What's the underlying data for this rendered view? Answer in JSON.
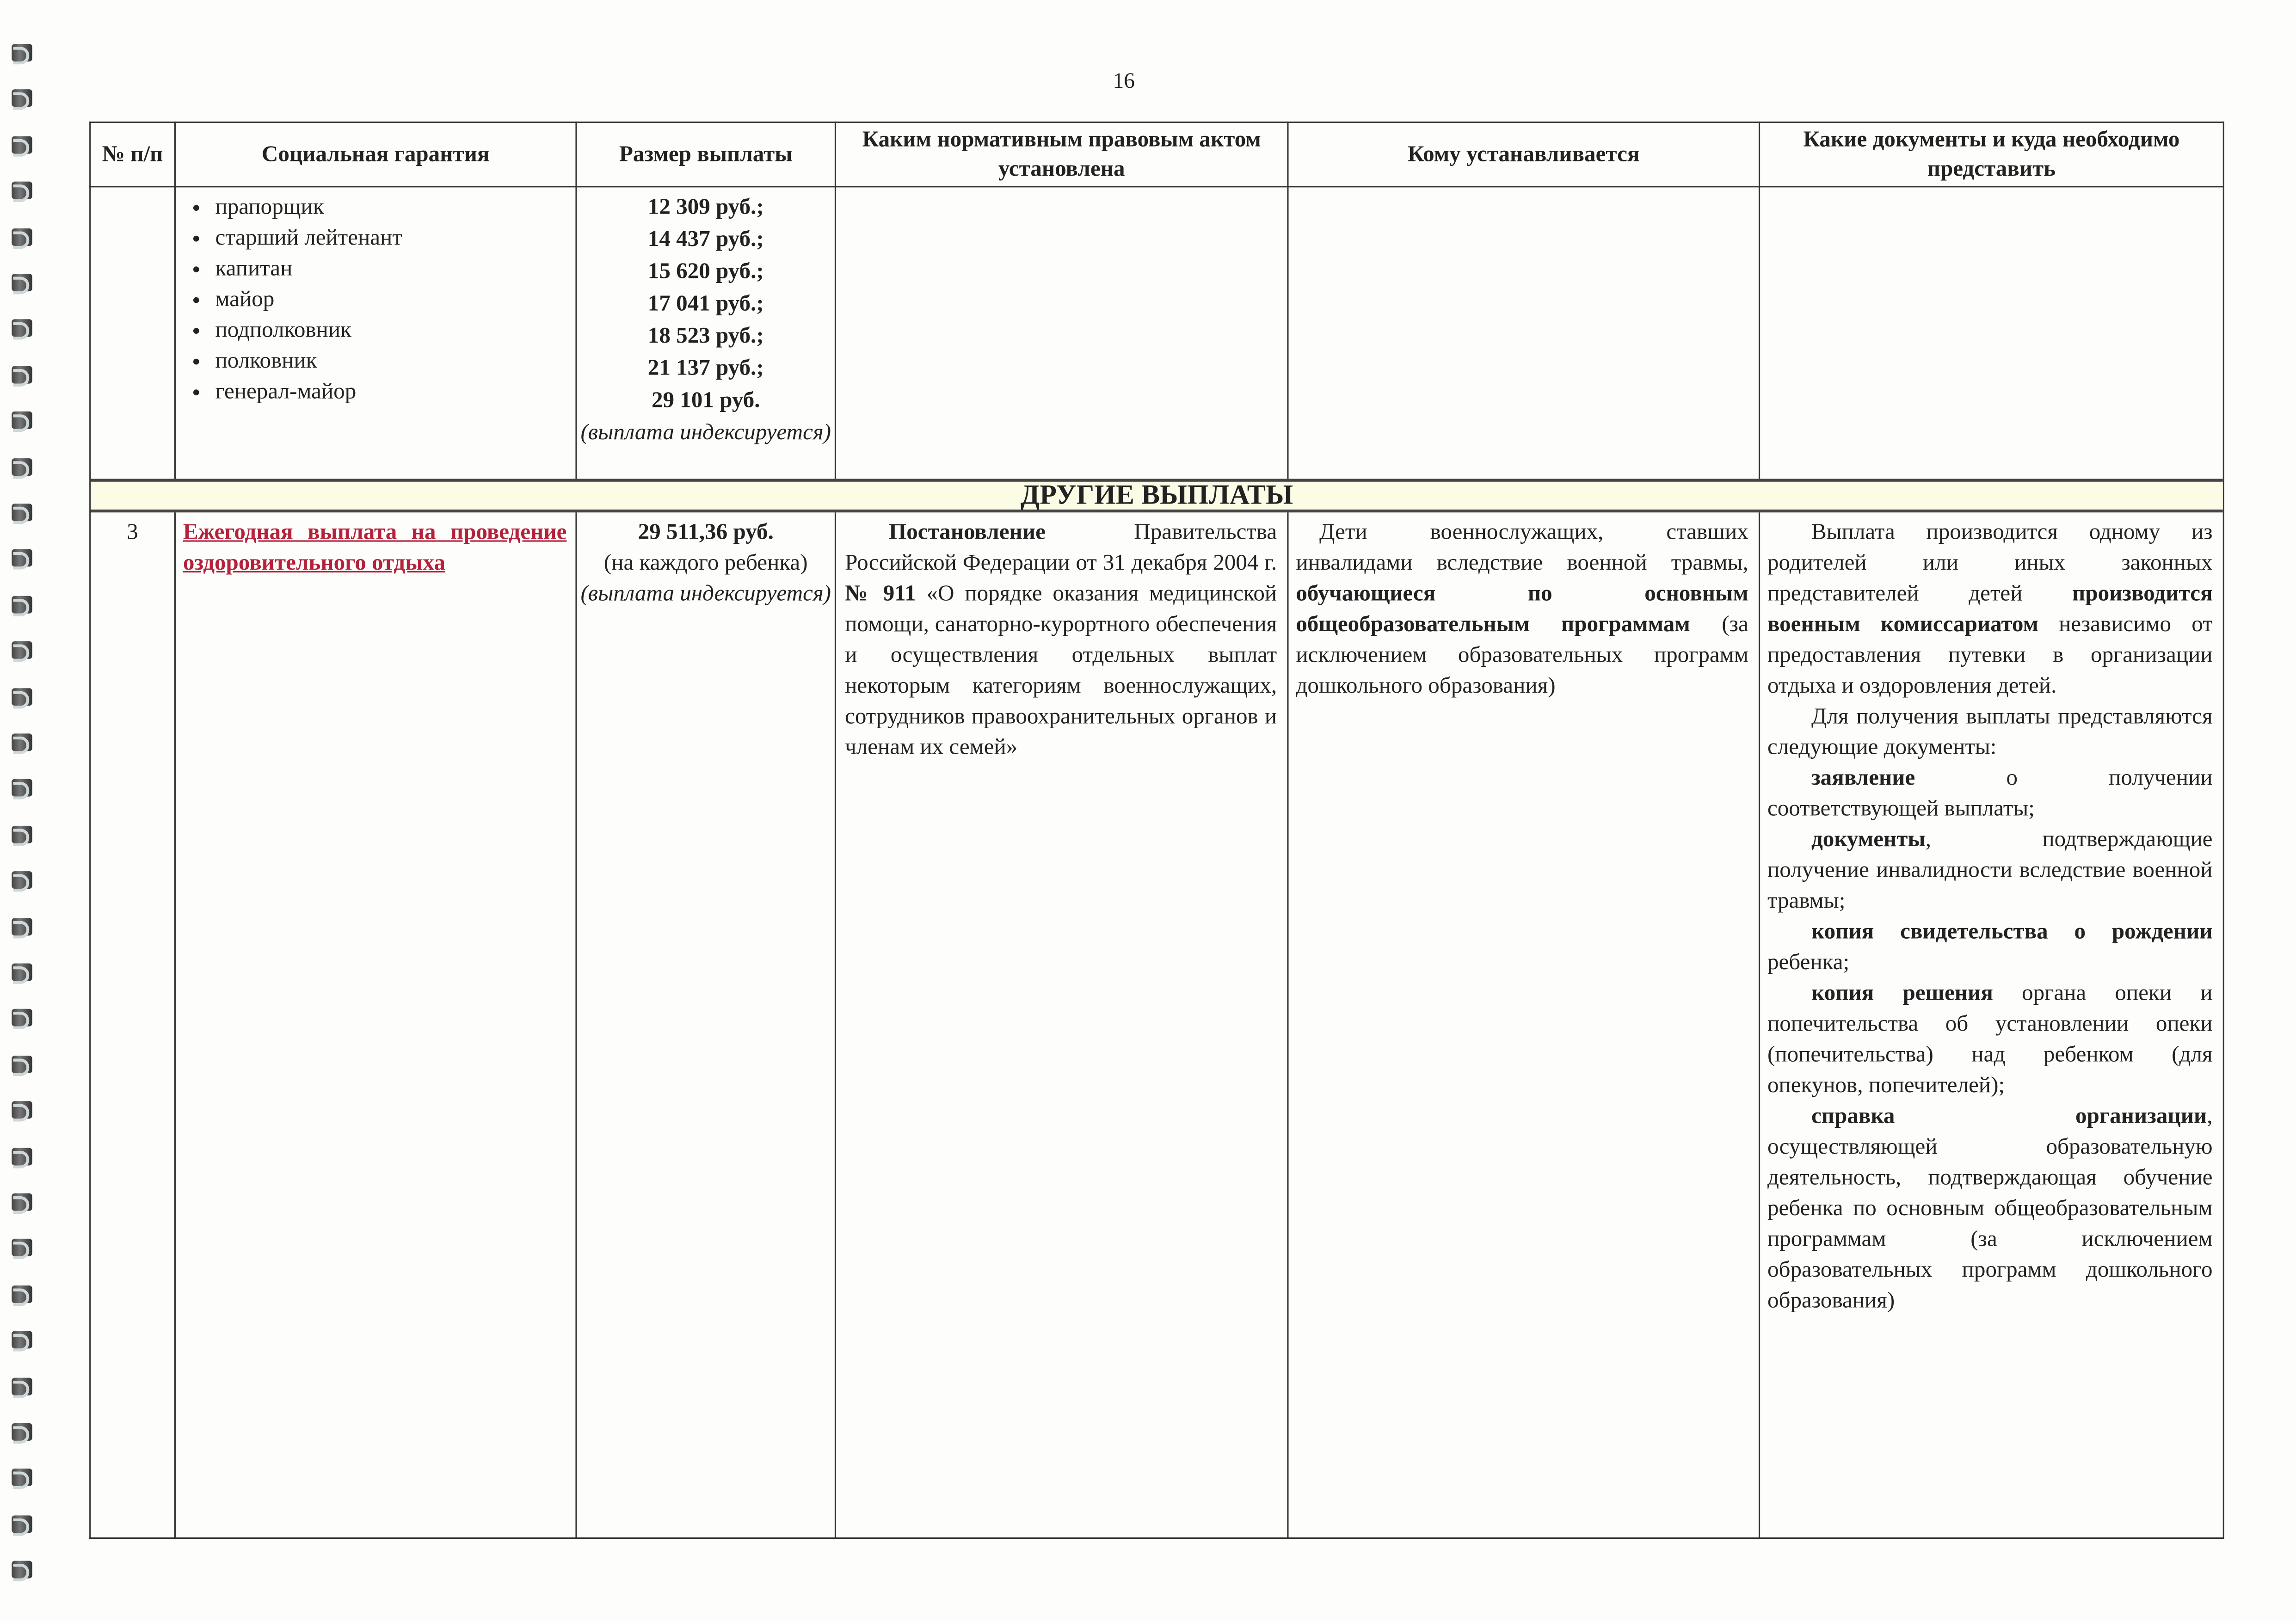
{
  "page_number": "16",
  "headers": [
    "№ п/п",
    "Социальная гарантия",
    "Размер выплаты",
    "Каким нормативным правовым актом установлена",
    "Кому устанавливается",
    "Какие документы и куда необходимо представить"
  ],
  "continued_row": {
    "ranks": [
      "прапорщик",
      "старший лейтенант",
      "капитан",
      "майор",
      "подполковник",
      "полковник",
      "генерал-майор"
    ],
    "amounts": [
      "12 309 руб.;",
      "14 437 руб.;",
      "15 620 руб.;",
      "17 041 руб.;",
      "18 523 руб.;",
      "21 137 руб.;",
      "29 101 руб."
    ],
    "note": "(выплата индексируется)"
  },
  "section_title": "ДРУГИЕ ВЫПЛАТЫ",
  "row3": {
    "number": "3",
    "guarantee": "Ежегодная выплата на проведение оздоровительного отдыха",
    "amount": "29 511,36 руб.",
    "amount_note": "(на каждого ребенка)",
    "amount_index": "(выплата индексируется)",
    "act_bold": "Постановление",
    "act_text1": " Правительства Российской Федерации от 31 декабря 2004 г. ",
    "act_num": "№ 911",
    "act_text2": " «О порядке оказания медицинской помощи, санаторно-курортного обеспечения и осуществления отдельных выплат некоторым категориям военнослужащих, сотрудников правоохранительных органов и членам их семей»",
    "who_1": "Дети военнослужащих, ставших инвалидами вследствие военной травмы, ",
    "who_bold": "обучающиеся по основным общеобразовательным программам",
    "who_2": " (за исключением образовательных программ дошкольного образования)",
    "docs": {
      "p1a": "Выплата производится одному из родителей или иных законных представителей детей ",
      "p1b": "производится военным комиссариатом",
      "p1c": " независимо от предоставления путевки в организации отдыха и оздоровления детей.",
      "p2": "Для получения выплаты представляются следующие документы:",
      "items": [
        {
          "bold": "заявление",
          "text": " о получении соответствующей выплаты;"
        },
        {
          "bold": "документы",
          "text": ", подтверждающие получение инвалидности вследствие военной травмы;"
        },
        {
          "bold": "копия свидетельства о рождении",
          "text": " ребенка;"
        },
        {
          "bold": "копия решения",
          "text": " органа опеки и попечительства об установлении опеки (попечительства) над ребенком (для опекунов, попечителей);"
        },
        {
          "bold": "справка организации",
          "text": ", осуществляющей образовательную деятельность, подтверждающая обучение ребенка по основным общеобразовательным программам (за исключением образовательных программ дошкольного образования)"
        }
      ]
    }
  }
}
